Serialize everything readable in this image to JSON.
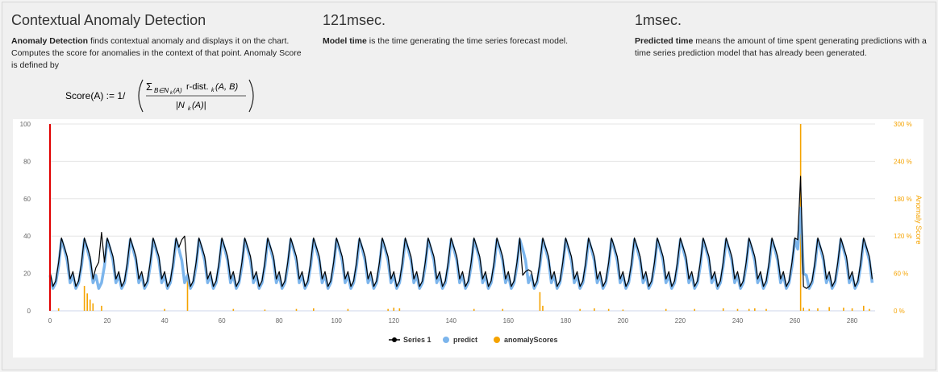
{
  "header": {
    "title": "Contextual Anomaly Detection",
    "desc_bold": "Anomaly Detection",
    "desc_text": " finds contextual anomaly and displays it on the chart. Computes the score for anomalies in the context of that point. Anomaly Score is defined by",
    "model_time_value": "121msec.",
    "model_time_bold": "Model time",
    "model_time_text": " is the time generating the time series forecast model.",
    "pred_time_value": "1msec.",
    "pred_time_bold": "Predicted time",
    "pred_time_text": " means the amount of time spent generating predictions with a time series prediction model that has already been generated."
  },
  "formula": {
    "lhs": "Score(A) := 1/",
    "numerator_sum": "Σ",
    "numerator_sub": "B∈N",
    "numerator_sub2": "k",
    "numerator_sub3": "(A)",
    "numerator_text": "r-dist.",
    "numerator_k": "k",
    "numerator_args": "(A, B)",
    "denominator": "|N",
    "denominator_k": "k",
    "denominator_end": "(A)|"
  },
  "colors": {
    "series1": "#000000",
    "predict": "#7cb5ec",
    "anomaly": "#f5a300",
    "marker_line": "#e00000",
    "grid": "#e6e6e6"
  },
  "chart_data": {
    "type": "line",
    "x_range": [
      0,
      288
    ],
    "ylim_left": [
      0,
      100
    ],
    "ylim_right": [
      0,
      300
    ],
    "left_ticks": [
      "0",
      "20",
      "40",
      "60",
      "80",
      "100"
    ],
    "right_ticks": [
      "0 %",
      "60 %",
      "120 %",
      "180 %",
      "240 %",
      "300 %"
    ],
    "x_ticks": [
      "0",
      "20",
      "40",
      "60",
      "80",
      "100",
      "120",
      "140",
      "160",
      "180",
      "200",
      "220",
      "240",
      "260",
      "280"
    ],
    "right_axis_label": "Anomaly Score",
    "marker_x": 0,
    "series": [
      {
        "name": "Series 1"
      },
      {
        "name": "predict"
      },
      {
        "name": "anomalyScores"
      }
    ],
    "period": 8,
    "pattern_series1": [
      21,
      13,
      16,
      26,
      39,
      34,
      29,
      17
    ],
    "pattern_predict": [
      19,
      12,
      15,
      24,
      38,
      33,
      27,
      15
    ],
    "series1_overrides": [
      [
        15,
        17
      ],
      [
        16,
        23
      ],
      [
        17,
        26
      ],
      [
        18,
        42
      ],
      [
        46,
        38
      ],
      [
        47,
        40
      ],
      [
        165,
        19
      ],
      [
        166,
        21
      ],
      [
        167,
        22
      ],
      [
        261,
        38
      ],
      [
        262,
        72
      ],
      [
        263,
        13
      ],
      [
        264,
        12
      ]
    ],
    "predict_overrides": [
      [
        262,
        55
      ],
      [
        263,
        20
      ]
    ],
    "anomaly_points": [
      [
        0,
        5
      ],
      [
        3,
        4
      ],
      [
        12,
        40
      ],
      [
        13,
        28
      ],
      [
        14,
        18
      ],
      [
        15,
        12
      ],
      [
        18,
        8
      ],
      [
        48,
        55
      ],
      [
        171,
        30
      ],
      [
        172,
        8
      ],
      [
        262,
        300
      ],
      [
        263,
        5
      ],
      [
        265,
        3
      ],
      [
        268,
        4
      ],
      [
        272,
        6
      ],
      [
        277,
        5
      ],
      [
        280,
        4
      ],
      [
        284,
        8
      ],
      [
        286,
        3
      ],
      [
        40,
        3
      ],
      [
        64,
        3
      ],
      [
        75,
        2
      ],
      [
        86,
        3
      ],
      [
        92,
        4
      ],
      [
        104,
        3
      ],
      [
        118,
        3
      ],
      [
        120,
        5
      ],
      [
        122,
        4
      ],
      [
        148,
        3
      ],
      [
        158,
        3
      ],
      [
        185,
        3
      ],
      [
        190,
        4
      ],
      [
        195,
        3
      ],
      [
        200,
        2
      ],
      [
        215,
        3
      ],
      [
        225,
        3
      ],
      [
        235,
        4
      ],
      [
        240,
        3
      ],
      [
        244,
        3
      ],
      [
        246,
        4
      ],
      [
        250,
        3
      ]
    ]
  }
}
